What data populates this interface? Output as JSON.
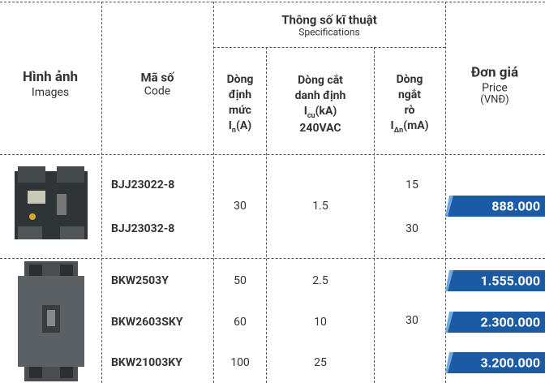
{
  "header": {
    "images": {
      "vi": "Hình ảnh",
      "en": "Images"
    },
    "code": {
      "vi": "Mã số",
      "en": "Code"
    },
    "specs": {
      "vi": "Thông số kĩ thuật",
      "en": "Specifications"
    },
    "rated": {
      "lines": [
        "Dòng",
        "định",
        "mức"
      ],
      "symbol": "I",
      "sub": "n",
      "unit": "(A)"
    },
    "breaking": {
      "lines": [
        "Dòng cắt",
        "danh định"
      ],
      "symbol": "I",
      "sub": "cu",
      "unit": "(kA)",
      "voltage": "240VAC"
    },
    "leakage": {
      "lines": [
        "Dòng",
        "ngắt",
        "rò"
      ],
      "symbol": "I",
      "sub": "Δn",
      "unit": "(mA)"
    },
    "price": {
      "vi": "Đơn giá",
      "en": "Price",
      "unit": "(VNĐ)"
    }
  },
  "groups": [
    {
      "codes": [
        "BJJ23022-8",
        "BJJ23032-8"
      ],
      "rated": "30",
      "breaking": "1.5",
      "leakage": [
        "15",
        "30"
      ],
      "prices": [
        "888.000"
      ]
    },
    {
      "codes": [
        "BKW2503Y",
        "BKW2603SKY",
        "BKW21003KY"
      ],
      "rated": [
        "50",
        "60",
        "100"
      ],
      "breaking": [
        "2.5",
        "10",
        "25"
      ],
      "leakage": [
        "30"
      ],
      "prices": [
        "1.555.000",
        "2.300.000",
        "3.200.000"
      ]
    }
  ]
}
